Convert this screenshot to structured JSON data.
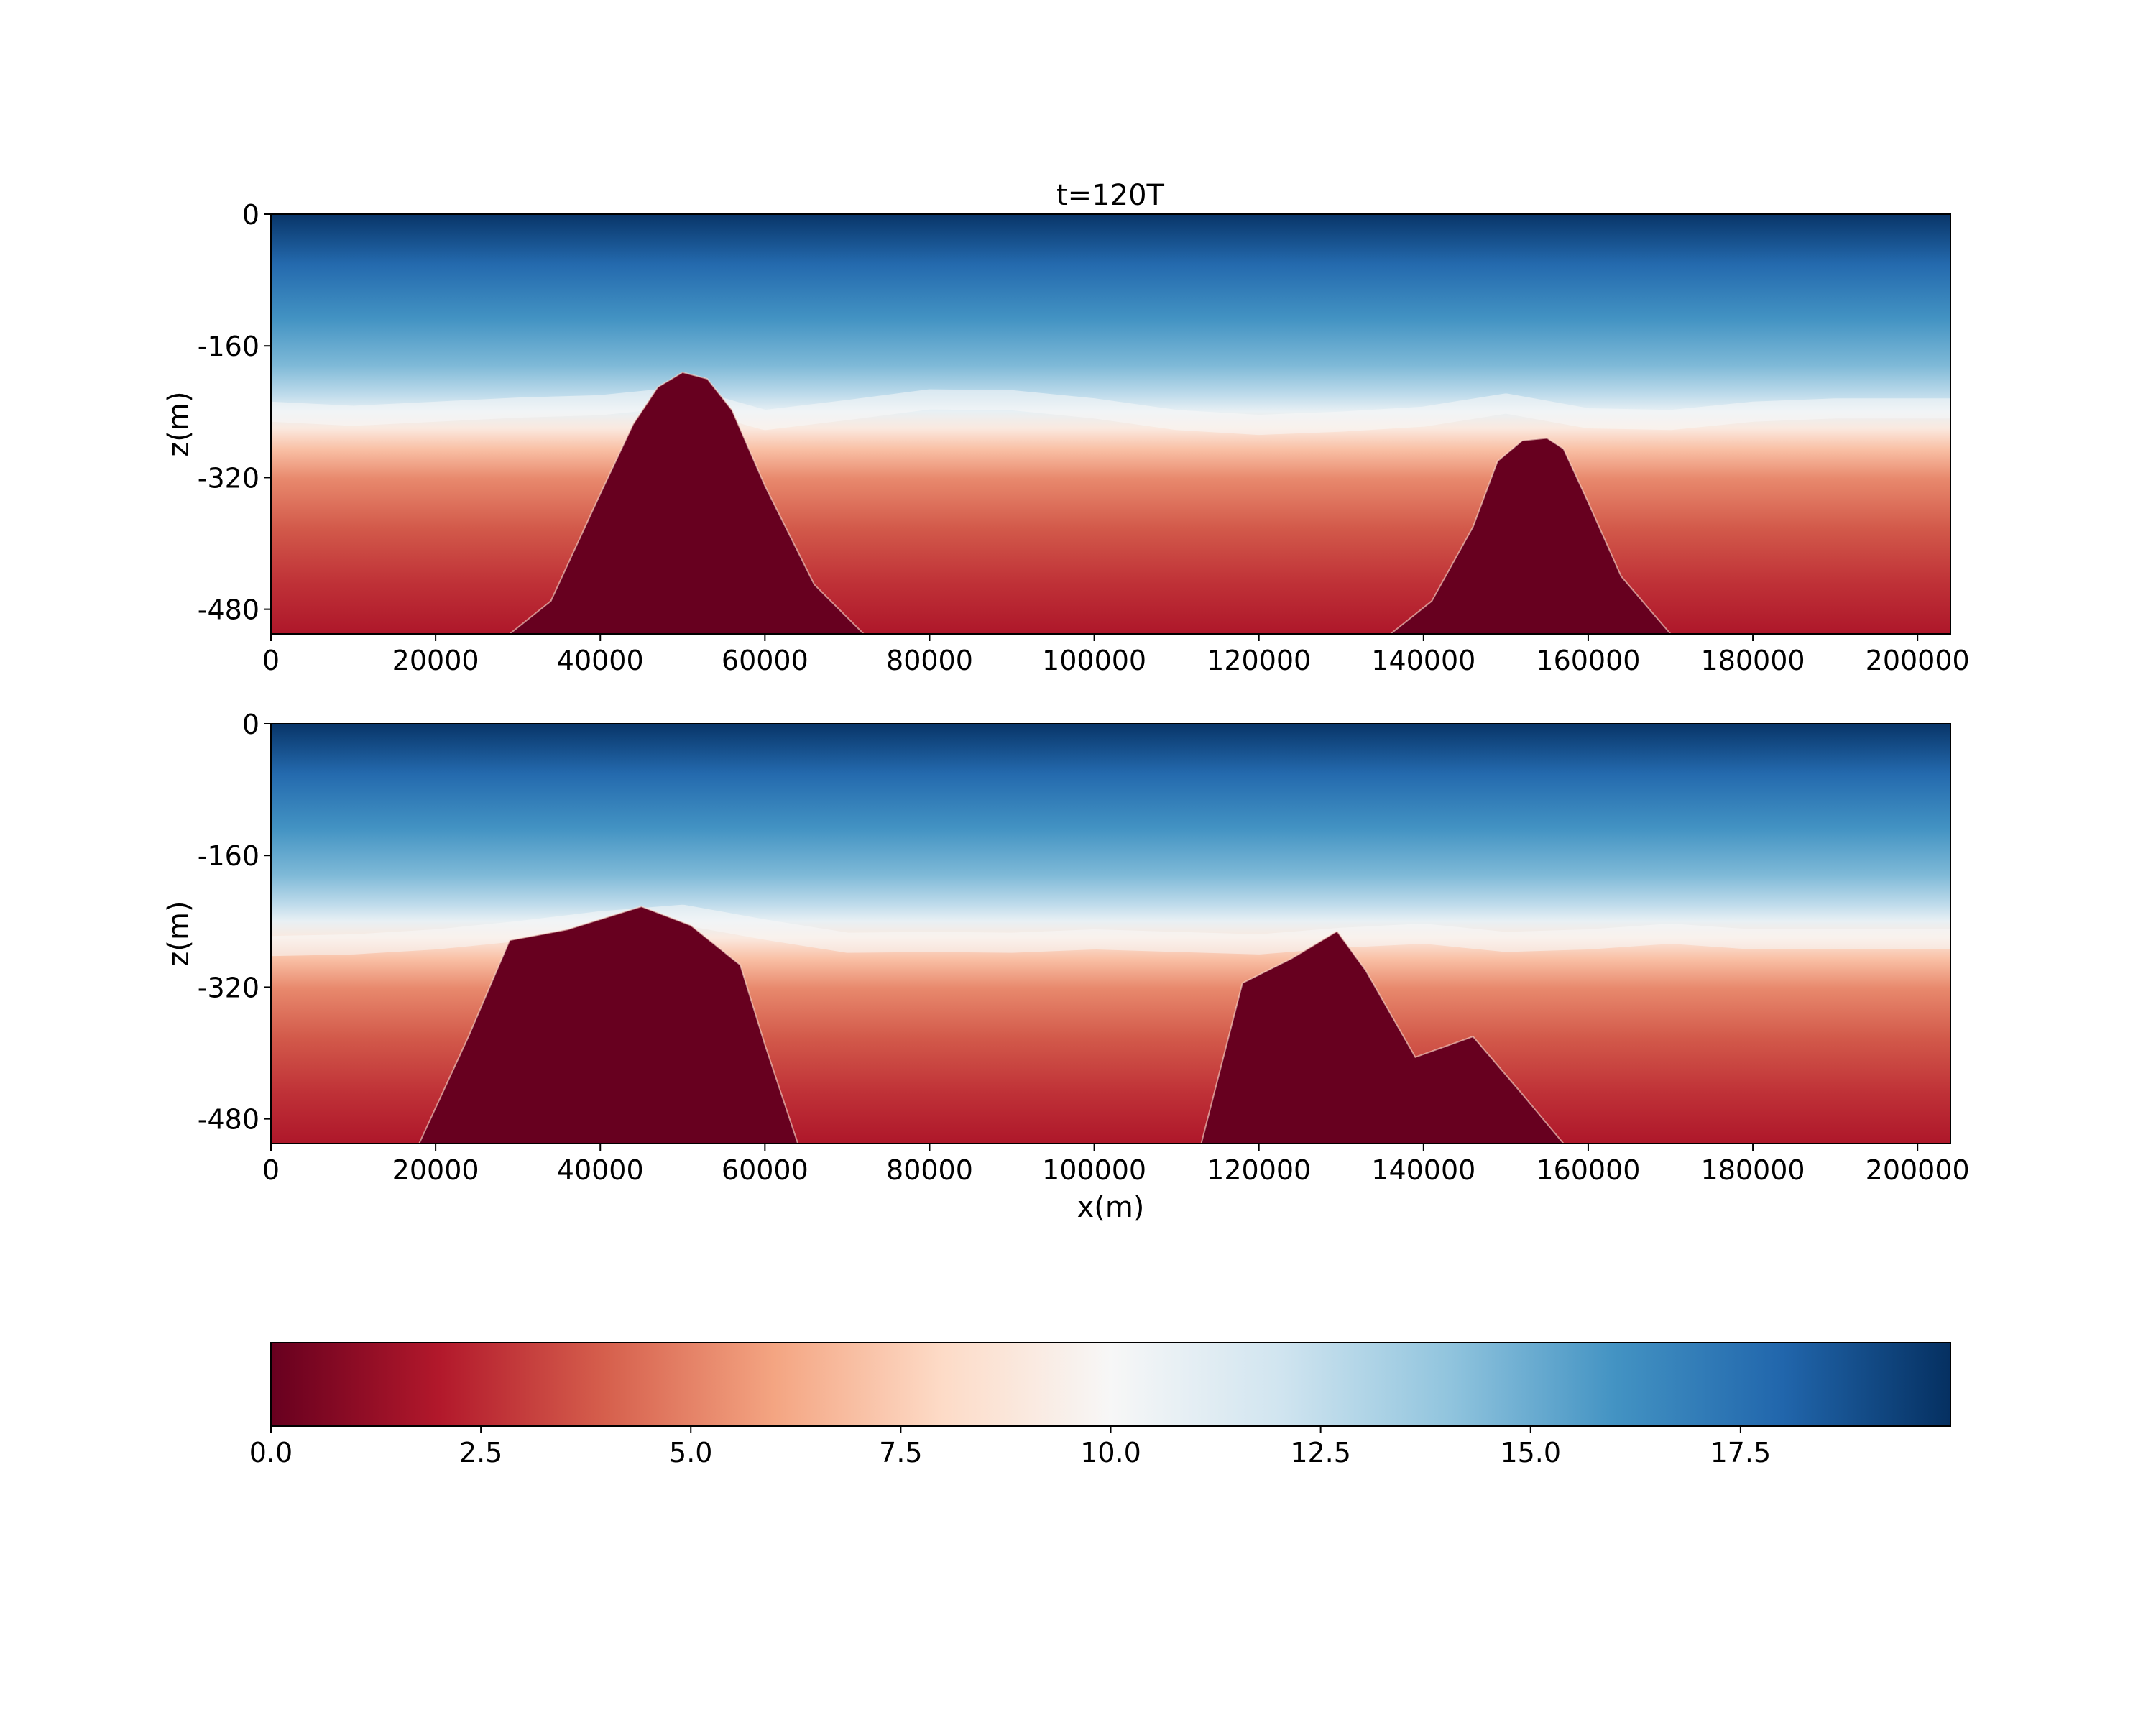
{
  "figure": {
    "title": "t=120T",
    "colormap": "RdBu",
    "colorbar": {
      "range": [
        0,
        20
      ],
      "ticks": [
        "0.0",
        "2.5",
        "5.0",
        "7.5",
        "10.0",
        "12.5",
        "15.0",
        "17.5"
      ],
      "stops": [
        "#67001f",
        "#b2182b",
        "#d6604d",
        "#f4a582",
        "#fddbc7",
        "#f7f7f7",
        "#d1e5f0",
        "#92c5de",
        "#4393c3",
        "#2166ac",
        "#053061"
      ]
    },
    "mask_color": "#67001f"
  },
  "chart_data": [
    {
      "type": "heatmap",
      "title": "t=120T",
      "xlabel": "",
      "ylabel": "z(m)",
      "xlim": [
        0,
        204000
      ],
      "ylim": [
        -510,
        0
      ],
      "xticks": [
        "0",
        "20000",
        "40000",
        "60000",
        "80000",
        "100000",
        "120000",
        "140000",
        "160000",
        "180000",
        "200000"
      ],
      "yticks": [
        "0",
        "-160",
        "-320",
        "-480"
      ],
      "value_range": [
        0,
        20
      ],
      "isopycnal_10_depth": {
        "x": [
          0,
          10000,
          20000,
          30000,
          40000,
          50000,
          60000,
          70000,
          80000,
          90000,
          100000,
          110000,
          120000,
          130000,
          140000,
          150000,
          160000,
          170000,
          180000,
          190000,
          204000
        ],
        "z": [
          -240,
          -245,
          -240,
          -235,
          -232,
          -222,
          -250,
          -238,
          -225,
          -226,
          -236,
          -250,
          -256,
          -252,
          -246,
          -230,
          -248,
          -250,
          -240,
          -236,
          -236
        ]
      },
      "topography": [
        {
          "x": [
            29000,
            34000,
            40000,
            44000,
            47000,
            50000,
            53000,
            56000,
            60000,
            66000,
            72000
          ],
          "z": [
            -510,
            -470,
            -340,
            -255,
            -210,
            -192,
            -200,
            -238,
            -330,
            -450,
            -510
          ]
        },
        {
          "x": [
            136000,
            141000,
            146000,
            149000,
            152000,
            155000,
            157000,
            160000,
            164000,
            170000
          ],
          "z": [
            -510,
            -470,
            -380,
            -300,
            -275,
            -272,
            -285,
            -350,
            -440,
            -510
          ]
        }
      ]
    },
    {
      "type": "heatmap",
      "title": "",
      "xlabel": "x(m)",
      "ylabel": "z(m)",
      "xlim": [
        0,
        204000
      ],
      "ylim": [
        -510,
        0
      ],
      "xticks": [
        "0",
        "20000",
        "40000",
        "60000",
        "80000",
        "100000",
        "120000",
        "140000",
        "160000",
        "180000",
        "200000"
      ],
      "yticks": [
        "0",
        "-160",
        "-320",
        "-480"
      ],
      "value_range": [
        0,
        20
      ],
      "isopycnal_10_depth": {
        "x": [
          0,
          10000,
          20000,
          30000,
          40000,
          50000,
          60000,
          70000,
          80000,
          90000,
          100000,
          110000,
          120000,
          130000,
          140000,
          150000,
          160000,
          170000,
          180000,
          190000,
          204000
        ],
        "z": [
          -270,
          -268,
          -262,
          -252,
          -240,
          -232,
          -250,
          -266,
          -265,
          -266,
          -262,
          -265,
          -268,
          -260,
          -255,
          -265,
          -262,
          -255,
          -262,
          -262,
          -262
        ]
      },
      "topography": [
        {
          "x": [
            18000,
            24000,
            29000,
            36000,
            45000,
            51000,
            57000,
            60000,
            64000
          ],
          "z": [
            -510,
            -380,
            -263,
            -250,
            -222,
            -245,
            -293,
            -390,
            -510
          ]
        },
        {
          "x": [
            113000,
            118000,
            124000,
            129500,
            133000,
            139000,
            146000,
            152000,
            157000
          ],
          "z": [
            -510,
            -315,
            -285,
            -252,
            -300,
            -405,
            -380,
            -450,
            -510
          ]
        }
      ]
    }
  ]
}
